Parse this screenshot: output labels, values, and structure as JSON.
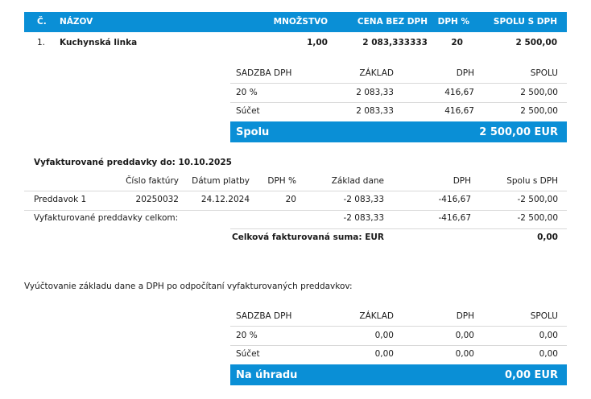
{
  "items_table": {
    "headers": {
      "no": "Č.",
      "name": "NÁZOV",
      "qty": "MNOŽSTVO",
      "price": "CENA BEZ DPH",
      "vat": "DPH %",
      "total": "SPOLU S DPH"
    },
    "rows": [
      {
        "no": "1.",
        "name": "Kuchynská linka",
        "qty": "1,00",
        "price": "2 083,333333",
        "vat": "20",
        "total": "2 500,00"
      }
    ]
  },
  "vat_summary_1": {
    "headers": {
      "rate": "SADZBA DPH",
      "base": "ZÁKLAD",
      "vat": "DPH",
      "total": "SPOLU"
    },
    "rows": [
      {
        "rate": "20 %",
        "base": "2 083,33",
        "vat": "416,67",
        "total": "2 500,00"
      },
      {
        "rate": "Súčet",
        "base": "2 083,33",
        "vat": "416,67",
        "total": "2 500,00"
      }
    ],
    "total_label": "Spolu",
    "total_value": "2 500,00 EUR"
  },
  "advances": {
    "title": "Vyfakturované preddavky do: 10.10.2025",
    "headers": {
      "invoice": "Číslo faktúry",
      "date": "Dátum platby",
      "vat": "DPH %",
      "base": "Základ dane",
      "dph": "DPH",
      "total": "Spolu s DPH"
    },
    "rows": [
      {
        "name": "Preddavok 1",
        "invoice": "20250032",
        "date": "24.12.2024",
        "vat": "20",
        "base": "-2 083,33",
        "dph": "-416,67",
        "total": "-2 500,00"
      }
    ],
    "sum_label": "Vyfakturované preddavky celkom:",
    "sum_base": "-2 083,33",
    "sum_dph": "-416,67",
    "sum_total": "-2 500,00",
    "grand_label": "Celková fakturovaná suma: EUR",
    "grand_value": "0,00"
  },
  "settlement_text": "Vyúčtovanie základu dane a DPH po odpočítaní vyfakturovaných preddavkov:",
  "vat_summary_2": {
    "headers": {
      "rate": "SADZBA DPH",
      "base": "ZÁKLAD",
      "vat": "DPH",
      "total": "SPOLU"
    },
    "rows": [
      {
        "rate": "20 %",
        "base": "0,00",
        "vat": "0,00",
        "total": "0,00"
      },
      {
        "rate": "Súčet",
        "base": "0,00",
        "vat": "0,00",
        "total": "0,00"
      }
    ],
    "total_label": "Na úhradu",
    "total_value": "0,00 EUR"
  },
  "colors": {
    "accent": "#0a8fd6",
    "divider": "#d9d9d9"
  }
}
